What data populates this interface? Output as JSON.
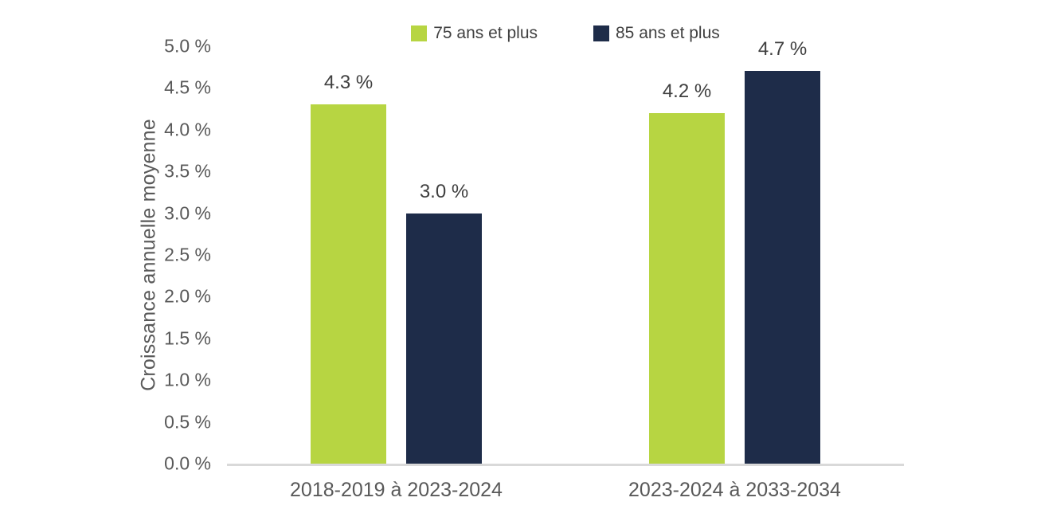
{
  "chart_data": {
    "type": "bar",
    "title": "",
    "xlabel": "",
    "ylabel": "Croissance annuelle moyenne",
    "categories": [
      "2018-2019 à 2023-2024",
      "2023-2024 à 2033-2034"
    ],
    "series": [
      {
        "name": "75 ans et plus",
        "color": "#b7d542",
        "values": [
          4.3,
          4.2
        ],
        "value_labels": [
          "4.3 %",
          "4.2 %"
        ]
      },
      {
        "name": "85 ans et plus",
        "color": "#1e2c49",
        "values": [
          3.0,
          4.7
        ],
        "value_labels": [
          "3.0 %",
          "4.7 %"
        ]
      }
    ],
    "ylim": [
      0,
      5
    ],
    "ytick_step": 0.5,
    "yticks": [
      {
        "value": 5.0,
        "label": "5.0 %"
      },
      {
        "value": 4.5,
        "label": "4.5 %"
      },
      {
        "value": 4.0,
        "label": "4.0 %"
      },
      {
        "value": 3.5,
        "label": "3.5 %"
      },
      {
        "value": 3.0,
        "label": "3.0 %"
      },
      {
        "value": 2.5,
        "label": "2.5 %"
      },
      {
        "value": 2.0,
        "label": "2.0 %"
      },
      {
        "value": 1.5,
        "label": "1.5 %"
      },
      {
        "value": 1.0,
        "label": "1.0 %"
      },
      {
        "value": 0.5,
        "label": "0.5 %"
      },
      {
        "value": 0.0,
        "label": "0.0 %"
      }
    ],
    "grid": false,
    "legend_position": "top"
  },
  "colors": {
    "background": "#ffffff",
    "axis_line": "#d9d9d9",
    "tick_label": "#595959",
    "axis_title": "#595959",
    "x_label": "#595959",
    "value_label": "#3f3f3f",
    "legend_text": "#404040"
  }
}
